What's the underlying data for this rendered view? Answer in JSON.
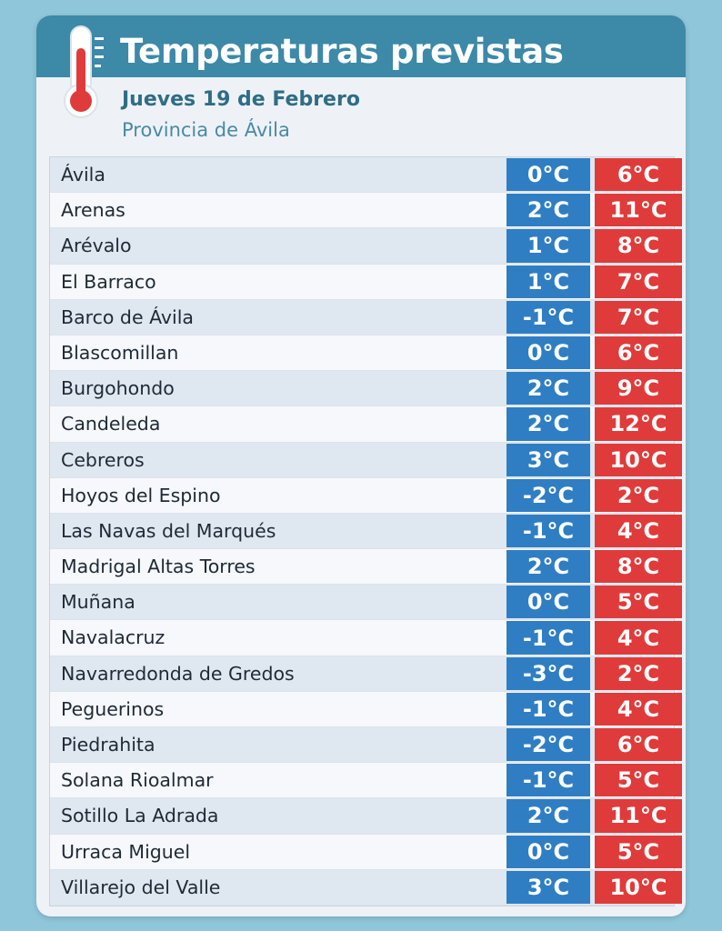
{
  "header": {
    "title": "Temperaturas previstas",
    "date": "Jueves 19 de Febrero",
    "province": "Provincia de Ávila",
    "icon": "thermometer-icon"
  },
  "colors": {
    "min": "#2f7ec4",
    "max": "#e03b3b",
    "header": "#3c89a8"
  },
  "rows": [
    {
      "name": "Ávila",
      "min": "0°C",
      "max": "6°C"
    },
    {
      "name": "Arenas",
      "min": "2°C",
      "max": "11°C"
    },
    {
      "name": "Arévalo",
      "min": "1°C",
      "max": "8°C"
    },
    {
      "name": "El Barraco",
      "min": "1°C",
      "max": "7°C"
    },
    {
      "name": "Barco de Ávila",
      "min": "-1°C",
      "max": "7°C"
    },
    {
      "name": "Blascomillan",
      "min": "0°C",
      "max": "6°C"
    },
    {
      "name": "Burgohondo",
      "min": "2°C",
      "max": "9°C"
    },
    {
      "name": "Candeleda",
      "min": "2°C",
      "max": "12°C"
    },
    {
      "name": "Cebreros",
      "min": "3°C",
      "max": "10°C"
    },
    {
      "name": "Hoyos del Espino",
      "min": "-2°C",
      "max": "2°C"
    },
    {
      "name": "Las Navas del Marqués",
      "min": "-1°C",
      "max": "4°C"
    },
    {
      "name": "Madrigal Altas Torres",
      "min": "2°C",
      "max": "8°C"
    },
    {
      "name": "Muñana",
      "min": "0°C",
      "max": "5°C"
    },
    {
      "name": "Navalacruz",
      "min": "-1°C",
      "max": "4°C"
    },
    {
      "name": "Navarredonda de Gredos",
      "min": "-3°C",
      "max": "2°C"
    },
    {
      "name": "Peguerinos",
      "min": "-1°C",
      "max": "4°C"
    },
    {
      "name": "Piedrahita",
      "min": "-2°C",
      "max": "6°C"
    },
    {
      "name": "Solana Rioalmar",
      "min": "-1°C",
      "max": "5°C"
    },
    {
      "name": "Sotillo La Adrada",
      "min": "2°C",
      "max": "11°C"
    },
    {
      "name": "Urraca Miguel",
      "min": "0°C",
      "max": "5°C"
    },
    {
      "name": "Villarejo del Valle",
      "min": "3°C",
      "max": "10°C"
    }
  ]
}
